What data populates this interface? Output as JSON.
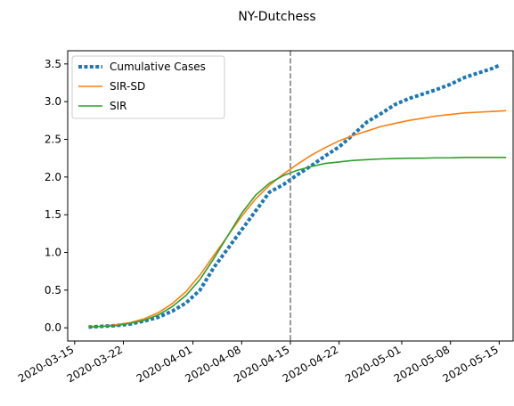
{
  "chart_data": {
    "type": "line",
    "title": "NY-Dutchess",
    "xlabel": "",
    "ylabel": "",
    "x_axis": "date",
    "xlim": [
      "2020-03-14",
      "2020-05-17"
    ],
    "ylim": [
      -0.175,
      3.675
    ],
    "x_ticks": [
      "2020-03-15",
      "2020-03-22",
      "2020-04-01",
      "2020-04-08",
      "2020-04-15",
      "2020-04-22",
      "2020-05-01",
      "2020-05-08",
      "2020-05-15"
    ],
    "y_ticks": [
      "0.0",
      "0.5",
      "1.0",
      "1.5",
      "2.0",
      "2.5",
      "3.0",
      "3.5"
    ],
    "grid": false,
    "legend_position": "top-left",
    "vertical_line": {
      "x": "2020-04-15",
      "color": "#808080",
      "style": "dashed"
    },
    "series": [
      {
        "name": "Cumulative Cases",
        "color": "#1f77b4",
        "style": "dotted",
        "x": [
          "2020-03-17",
          "2020-03-19",
          "2020-03-21",
          "2020-03-23",
          "2020-03-25",
          "2020-03-27",
          "2020-03-29",
          "2020-03-31",
          "2020-04-02",
          "2020-04-04",
          "2020-04-06",
          "2020-04-08",
          "2020-04-10",
          "2020-04-12",
          "2020-04-14",
          "2020-04-16",
          "2020-04-18",
          "2020-04-20",
          "2020-04-22",
          "2020-04-24",
          "2020-04-26",
          "2020-04-28",
          "2020-04-30",
          "2020-05-02",
          "2020-05-04",
          "2020-05-06",
          "2020-05-08",
          "2020-05-10",
          "2020-05-12",
          "2020-05-14",
          "2020-05-15"
        ],
        "values": [
          0.01,
          0.02,
          0.03,
          0.05,
          0.09,
          0.14,
          0.22,
          0.33,
          0.5,
          0.8,
          1.05,
          1.3,
          1.55,
          1.8,
          1.9,
          2.03,
          2.15,
          2.28,
          2.4,
          2.56,
          2.73,
          2.84,
          2.96,
          3.04,
          3.1,
          3.16,
          3.23,
          3.32,
          3.38,
          3.44,
          3.48
        ]
      },
      {
        "name": "SIR-SD",
        "color": "#ff7f0e",
        "style": "solid",
        "x": [
          "2020-03-17",
          "2020-03-19",
          "2020-03-21",
          "2020-03-23",
          "2020-03-25",
          "2020-03-27",
          "2020-03-29",
          "2020-03-31",
          "2020-04-02",
          "2020-04-04",
          "2020-04-06",
          "2020-04-08",
          "2020-04-10",
          "2020-04-12",
          "2020-04-14",
          "2020-04-16",
          "2020-04-18",
          "2020-04-20",
          "2020-04-22",
          "2020-04-24",
          "2020-04-26",
          "2020-04-28",
          "2020-04-30",
          "2020-05-02",
          "2020-05-04",
          "2020-05-06",
          "2020-05-08",
          "2020-05-10",
          "2020-05-12",
          "2020-05-14",
          "2020-05-16"
        ],
        "values": [
          0.01,
          0.02,
          0.04,
          0.07,
          0.12,
          0.2,
          0.32,
          0.48,
          0.7,
          0.96,
          1.22,
          1.48,
          1.71,
          1.89,
          2.04,
          2.17,
          2.29,
          2.39,
          2.48,
          2.55,
          2.61,
          2.67,
          2.71,
          2.75,
          2.78,
          2.81,
          2.83,
          2.85,
          2.86,
          2.87,
          2.88
        ]
      },
      {
        "name": "SIR",
        "color": "#2ca02c",
        "style": "solid",
        "x": [
          "2020-03-17",
          "2020-03-19",
          "2020-03-21",
          "2020-03-23",
          "2020-03-25",
          "2020-03-27",
          "2020-03-29",
          "2020-03-31",
          "2020-04-02",
          "2020-04-04",
          "2020-04-06",
          "2020-04-08",
          "2020-04-10",
          "2020-04-12",
          "2020-04-14",
          "2020-04-16",
          "2020-04-18",
          "2020-04-20",
          "2020-04-22",
          "2020-04-24",
          "2020-04-26",
          "2020-04-28",
          "2020-04-30",
          "2020-05-02",
          "2020-05-04",
          "2020-05-06",
          "2020-05-08",
          "2020-05-10",
          "2020-05-12",
          "2020-05-14",
          "2020-05-16"
        ],
        "values": [
          0.01,
          0.02,
          0.03,
          0.06,
          0.1,
          0.17,
          0.28,
          0.43,
          0.64,
          0.92,
          1.22,
          1.52,
          1.76,
          1.92,
          2.02,
          2.09,
          2.14,
          2.18,
          2.2,
          2.22,
          2.23,
          2.24,
          2.245,
          2.25,
          2.25,
          2.255,
          2.255,
          2.26,
          2.26,
          2.26,
          2.26
        ]
      }
    ]
  }
}
